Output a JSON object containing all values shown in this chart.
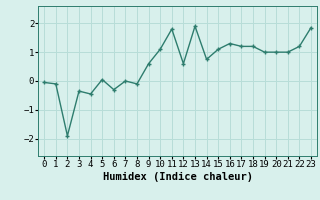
{
  "x": [
    0,
    1,
    2,
    3,
    4,
    5,
    6,
    7,
    8,
    9,
    10,
    11,
    12,
    13,
    14,
    15,
    16,
    17,
    18,
    19,
    20,
    21,
    22,
    23
  ],
  "y": [
    -0.05,
    -0.1,
    -1.9,
    -0.35,
    -0.45,
    0.05,
    -0.3,
    0.0,
    -0.1,
    0.6,
    1.1,
    1.8,
    0.6,
    1.9,
    0.75,
    1.1,
    1.3,
    1.2,
    1.2,
    1.0,
    1.0,
    1.0,
    1.2,
    1.85
  ],
  "line_color": "#2e7d6e",
  "marker": "+",
  "marker_size": 3,
  "linewidth": 1.0,
  "xlabel": "Humidex (Indice chaleur)",
  "xlim": [
    -0.5,
    23.5
  ],
  "ylim": [
    -2.6,
    2.6
  ],
  "yticks": [
    -2,
    -1,
    0,
    1,
    2
  ],
  "xtick_labels": [
    "0",
    "1",
    "2",
    "3",
    "4",
    "5",
    "6",
    "7",
    "8",
    "9",
    "10",
    "11",
    "12",
    "13",
    "14",
    "15",
    "16",
    "17",
    "18",
    "19",
    "20",
    "21",
    "22",
    "23"
  ],
  "background_color": "#d8f0ec",
  "grid_color": "#b8ddd8",
  "tick_font_size": 6.5,
  "xlabel_font_size": 7.5,
  "xlabel_font_family": "monospace"
}
